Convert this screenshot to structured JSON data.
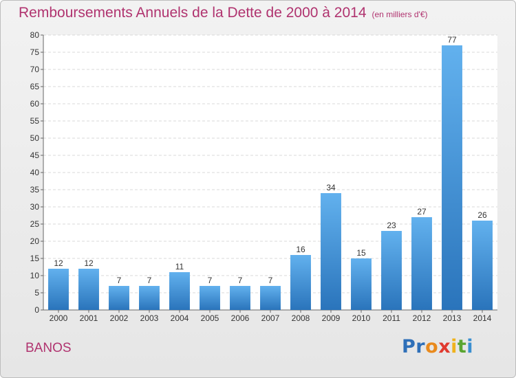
{
  "chart_data": {
    "type": "bar",
    "title": "Remboursements Annuels de la Dette de 2000 à 2014",
    "subtitle": "(en milliers d'€)",
    "categories": [
      "2000",
      "2001",
      "2002",
      "2003",
      "2004",
      "2005",
      "2006",
      "2007",
      "2008",
      "2009",
      "2010",
      "2011",
      "2012",
      "2013",
      "2014"
    ],
    "values": [
      12,
      12,
      7,
      7,
      11,
      7,
      7,
      7,
      16,
      34,
      15,
      23,
      27,
      77,
      26
    ],
    "ylim": [
      0,
      80
    ],
    "yticks": [
      0,
      5,
      10,
      15,
      20,
      25,
      30,
      35,
      40,
      45,
      50,
      55,
      60,
      65,
      70,
      75,
      80
    ],
    "grid": true,
    "xlabel": "",
    "ylabel": "",
    "bar_color": "#3d8fd6",
    "bar_color_light": "#62b1ee",
    "bar_color_dark": "#2a74bb"
  },
  "footer": {
    "town": "BANOS",
    "logo_letters": [
      "P",
      "r",
      "o",
      "x",
      "i",
      "t",
      "i"
    ],
    "logo_colors": [
      "#2e6fb8",
      "#2e6fb8",
      "#e98a1d",
      "#e03a2f",
      "#f0b21b",
      "#5aa531",
      "#3a8fd0"
    ]
  }
}
